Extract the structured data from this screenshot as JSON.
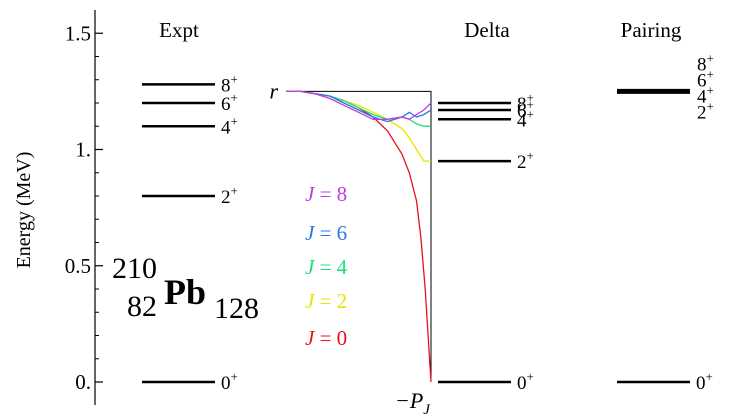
{
  "chart_data": {
    "type": "level-scheme",
    "ylabel": "Energy (MeV)",
    "ylim": [
      -0.08,
      1.6
    ],
    "y_ticks": [
      {
        "value": 0,
        "label": "0."
      },
      {
        "value": 0.5,
        "label": "0.5"
      },
      {
        "value": 1.0,
        "label": "1."
      },
      {
        "value": 1.5,
        "label": "1.5"
      }
    ],
    "nucleus": {
      "mass": "210",
      "atomic": "82",
      "symbol": "Pb",
      "neutrons": "128"
    },
    "columns": [
      {
        "name": "Expt",
        "levels": [
          {
            "label": "0",
            "energy": 0.0
          },
          {
            "label": "2",
            "energy": 0.8
          },
          {
            "label": "4",
            "energy": 1.1
          },
          {
            "label": "6",
            "energy": 1.2
          },
          {
            "label": "8",
            "energy": 1.28
          }
        ]
      },
      {
        "name": "Delta",
        "levels": [
          {
            "label": "0",
            "energy": 0.0
          },
          {
            "label": "2",
            "energy": 0.95
          },
          {
            "label": "4",
            "energy": 1.13
          },
          {
            "label": "6",
            "energy": 1.17
          },
          {
            "label": "8",
            "energy": 1.2
          }
        ]
      },
      {
        "name": "Pairing",
        "levels": [
          {
            "label": "8",
            "energy": 1.25
          },
          {
            "label": "6",
            "energy": 1.25
          },
          {
            "label": "4",
            "energy": 1.25
          },
          {
            "label": "2",
            "energy": 1.25
          },
          {
            "label": "0",
            "energy": 0.0
          }
        ]
      }
    ],
    "superscript": "+",
    "flow": {
      "start_label": "r",
      "end_label_main": "−P",
      "end_label_sub": "J",
      "start_energy": 1.25,
      "series": [
        {
          "name": "J = 0",
          "j": "J",
          "value": "= 0",
          "color": "#e8101c",
          "x": [
            0,
            0.1,
            0.2,
            0.3,
            0.4,
            0.5,
            0.6,
            0.7,
            0.8,
            0.85,
            0.9,
            0.93,
            0.96,
            0.98,
            1.0
          ],
          "y": [
            1.25,
            1.25,
            1.24,
            1.23,
            1.21,
            1.18,
            1.14,
            1.08,
            0.98,
            0.9,
            0.78,
            0.62,
            0.4,
            0.2,
            0.0
          ]
        },
        {
          "name": "J = 2",
          "j": "J",
          "value": "= 2",
          "color": "#e6e600",
          "x": [
            0,
            0.1,
            0.2,
            0.3,
            0.4,
            0.5,
            0.6,
            0.7,
            0.8,
            0.85,
            0.9,
            0.95,
            1.0
          ],
          "y": [
            1.25,
            1.25,
            1.24,
            1.23,
            1.21,
            1.19,
            1.16,
            1.13,
            1.09,
            1.05,
            1.0,
            0.95,
            0.95
          ]
        },
        {
          "name": "J = 4",
          "j": "J",
          "value": "= 4",
          "color": "#1ee07a",
          "x": [
            0,
            0.1,
            0.2,
            0.3,
            0.4,
            0.5,
            0.6,
            0.7,
            0.8,
            0.85,
            0.9,
            0.95,
            1.0
          ],
          "y": [
            1.25,
            1.25,
            1.24,
            1.23,
            1.21,
            1.18,
            1.15,
            1.13,
            1.14,
            1.13,
            1.11,
            1.1,
            1.1
          ]
        },
        {
          "name": "J = 6",
          "j": "J",
          "value": "= 6",
          "color": "#2a78e0",
          "x": [
            0,
            0.1,
            0.2,
            0.3,
            0.4,
            0.5,
            0.6,
            0.7,
            0.8,
            0.85,
            0.9,
            0.95,
            1.0
          ],
          "y": [
            1.25,
            1.25,
            1.24,
            1.23,
            1.2,
            1.17,
            1.14,
            1.12,
            1.14,
            1.16,
            1.14,
            1.15,
            1.17
          ]
        },
        {
          "name": "J = 8",
          "j": "J",
          "value": "= 8",
          "color": "#c03ae6",
          "x": [
            0,
            0.1,
            0.2,
            0.3,
            0.4,
            0.5,
            0.6,
            0.7,
            0.8,
            0.85,
            0.9,
            0.95,
            1.0
          ],
          "y": [
            1.25,
            1.25,
            1.24,
            1.22,
            1.19,
            1.16,
            1.13,
            1.13,
            1.14,
            1.13,
            1.15,
            1.17,
            1.2
          ]
        }
      ]
    }
  }
}
